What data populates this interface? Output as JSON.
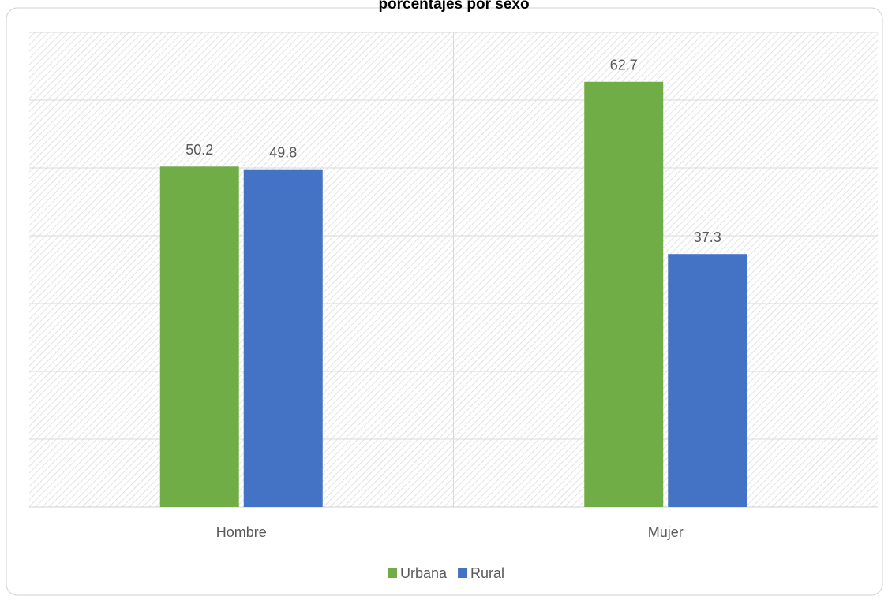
{
  "chart_data": {
    "type": "bar",
    "title": "porcentajes por sexo",
    "categories": [
      "Hombre",
      "Mujer"
    ],
    "series": [
      {
        "name": "Urbana",
        "color": "#70ad47",
        "values": [
          50.2,
          62.7
        ]
      },
      {
        "name": "Rural",
        "color": "#4472c4",
        "values": [
          49.8,
          37.3
        ]
      }
    ],
    "ylim": [
      0,
      70
    ],
    "yticks": [
      0,
      10,
      20,
      30,
      40,
      50,
      60,
      70
    ],
    "grid": true,
    "legend": "bottom"
  }
}
